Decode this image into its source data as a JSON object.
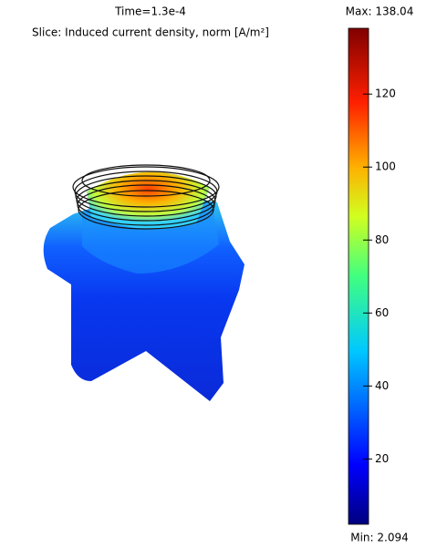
{
  "chart_data": {
    "type": "colorbar",
    "title": "Time=1.3e-4",
    "subtitle": "Slice: Induced current density, norm [A/m²]",
    "max_label": "Max: 138.04",
    "min_label": "Min: 2.094",
    "ylim": [
      2.094,
      138.04
    ],
    "yticks": [
      20,
      40,
      60,
      80,
      100,
      120
    ]
  }
}
